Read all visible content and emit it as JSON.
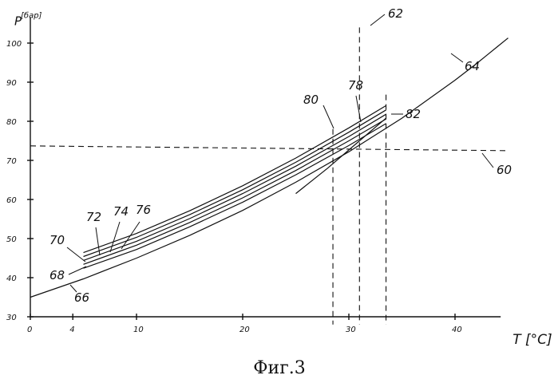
{
  "figure_caption": "Фиг.3",
  "chart_data": {
    "type": "line",
    "xlabel": "T [°C]",
    "ylabel": "P [бар]",
    "xlim": [
      0,
      45
    ],
    "ylim": [
      30,
      105
    ],
    "x_ticks": [
      "0",
      "4",
      "10",
      "20",
      "30",
      "40"
    ],
    "y_ticks": [
      "30",
      "40",
      "50",
      "60",
      "70",
      "80",
      "90",
      "100"
    ],
    "series": [
      {
        "name": "66",
        "x": [
          0,
          5,
          10,
          15,
          20,
          25,
          30,
          35,
          40,
          42
        ],
        "y": [
          35,
          39.7,
          45,
          50.8,
          57.2,
          64.4,
          72.2,
          80.8,
          90.5,
          94.7
        ]
      },
      {
        "name": "64",
        "x": [
          42,
          43,
          44,
          45
        ],
        "y": [
          94.7,
          96.9,
          99.1,
          101.3
        ]
      },
      {
        "name": "68",
        "x": [
          5,
          10,
          15,
          20,
          25,
          30,
          33.5
        ],
        "y": [
          42.4,
          47.2,
          53,
          59.3,
          66.3,
          73.8,
          79.4
        ]
      },
      {
        "name": "70",
        "x": [
          5,
          10,
          15,
          20,
          25,
          30,
          33.5
        ],
        "y": [
          43.4,
          48.3,
          54.1,
          60.4,
          67.4,
          75.0,
          80.6
        ]
      },
      {
        "name": "72",
        "x": [
          5,
          10,
          15,
          20,
          25,
          30,
          33.5
        ],
        "y": [
          44.4,
          49.3,
          55.1,
          61.5,
          68.5,
          76.1,
          81.8
        ]
      },
      {
        "name": "74",
        "x": [
          5,
          10,
          15,
          20,
          25,
          30,
          33.5
        ],
        "y": [
          45.4,
          50.3,
          56.1,
          62.5,
          69.5,
          77.2,
          82.9
        ]
      },
      {
        "name": "76",
        "x": [
          5,
          10,
          15,
          20,
          25,
          30,
          33.5
        ],
        "y": [
          46.4,
          51.3,
          57.1,
          63.5,
          70.6,
          78.3,
          84.0
        ]
      },
      {
        "name": "78",
        "x": [
          25,
          28,
          31,
          33.5
        ],
        "y": [
          61.5,
          68.0,
          75.0,
          80.8
        ]
      }
    ],
    "reference_lines": [
      {
        "name": "60",
        "orientation": "horizontal",
        "value": 73.5,
        "style": "dashed"
      },
      {
        "name": "62",
        "orientation": "vertical",
        "value": 31.0,
        "style": "dashed"
      },
      {
        "name": "80",
        "orientation": "vertical",
        "value": 28.5,
        "style": "dashed"
      },
      {
        "name": "82",
        "orientation": "vertical",
        "value": 33.5,
        "style": "dashed"
      }
    ],
    "reference_labels": [
      "60",
      "62",
      "80",
      "82"
    ],
    "grid": false,
    "legend": "none"
  }
}
